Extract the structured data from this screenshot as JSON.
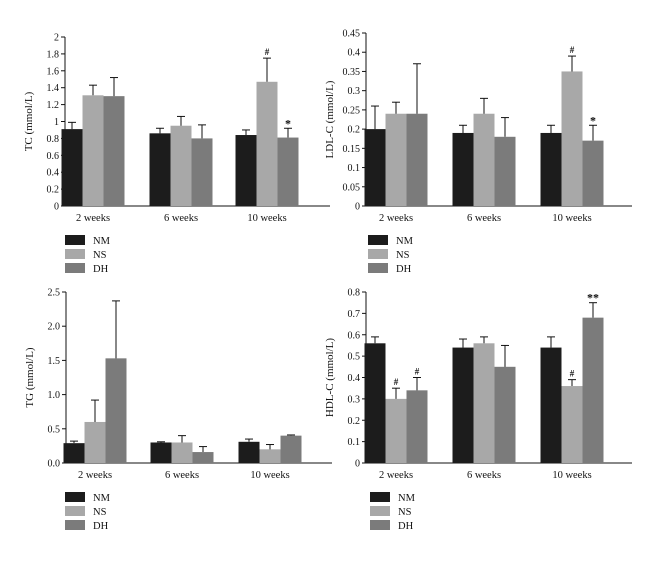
{
  "colors": {
    "NM": "#1c1c1c",
    "NS": "#a8a8a8",
    "DH": "#7b7b7b"
  },
  "legend": [
    {
      "key": "NM",
      "label": "NM"
    },
    {
      "key": "NS",
      "label": "NS"
    },
    {
      "key": "DH",
      "label": "DH"
    }
  ],
  "chart_data": [
    {
      "type": "bar",
      "ylabel": "TC (mmol/L)",
      "categories": [
        "2 weeks",
        "6 weeks",
        "10 weeks"
      ],
      "ylim": [
        0,
        2
      ],
      "yticks": [
        "0",
        "0.2",
        "0.4",
        "0.6",
        "0.8",
        "1",
        "1.2",
        "1.4",
        "1.6",
        "1.8",
        "2"
      ],
      "grid": false,
      "legend_position": "bottom-left",
      "series": [
        {
          "name": "NM",
          "values": [
            0.91,
            0.86,
            0.84
          ],
          "errors": [
            0.08,
            0.06,
            0.06
          ],
          "marks": [
            "",
            "",
            ""
          ]
        },
        {
          "name": "NS",
          "values": [
            1.31,
            0.95,
            1.47
          ],
          "errors": [
            0.12,
            0.11,
            0.28
          ],
          "marks": [
            "",
            "",
            "#"
          ]
        },
        {
          "name": "DH",
          "values": [
            1.3,
            0.8,
            0.81
          ],
          "errors": [
            0.22,
            0.16,
            0.11
          ],
          "marks": [
            "",
            "",
            "*"
          ]
        }
      ]
    },
    {
      "type": "bar",
      "ylabel": "LDL-C (mmol/L)",
      "categories": [
        "2 weeks",
        "6 weeks",
        "10 weeks"
      ],
      "ylim": [
        0,
        0.45
      ],
      "yticks": [
        "0",
        "0.05",
        "0.1",
        "0.15",
        "0.2",
        "0.25",
        "0.3",
        "0.35",
        "0.4",
        "0.45"
      ],
      "grid": false,
      "legend_position": "bottom-left",
      "series": [
        {
          "name": "NM",
          "values": [
            0.2,
            0.19,
            0.19
          ],
          "errors": [
            0.06,
            0.02,
            0.02
          ],
          "marks": [
            "",
            "",
            ""
          ]
        },
        {
          "name": "NS",
          "values": [
            0.24,
            0.24,
            0.35
          ],
          "errors": [
            0.03,
            0.04,
            0.04
          ],
          "marks": [
            "",
            "",
            "#"
          ]
        },
        {
          "name": "DH",
          "values": [
            0.24,
            0.18,
            0.17
          ],
          "errors": [
            0.13,
            0.05,
            0.04
          ],
          "marks": [
            "",
            "",
            "*"
          ]
        }
      ]
    },
    {
      "type": "bar",
      "ylabel": "TG (mmol/L)",
      "categories": [
        "2 weeks",
        "6 weeks",
        "10 weeks"
      ],
      "ylim": [
        0,
        2.5
      ],
      "yticks": [
        "0.0",
        "0.5",
        "1.0",
        "1.5",
        "2.0",
        "2.5"
      ],
      "grid": false,
      "legend_position": "bottom-left",
      "series": [
        {
          "name": "NM",
          "values": [
            0.29,
            0.3,
            0.31
          ],
          "errors": [
            0.03,
            0.01,
            0.04
          ],
          "marks": [
            "",
            "",
            ""
          ]
        },
        {
          "name": "NS",
          "values": [
            0.6,
            0.3,
            0.2
          ],
          "errors": [
            0.32,
            0.1,
            0.07
          ],
          "marks": [
            "",
            "",
            ""
          ]
        },
        {
          "name": "DH",
          "values": [
            1.53,
            0.16,
            0.4
          ],
          "errors": [
            0.84,
            0.08,
            0.01
          ],
          "marks": [
            "",
            "",
            ""
          ]
        }
      ]
    },
    {
      "type": "bar",
      "ylabel": "HDL-C (mmol/L)",
      "categories": [
        "2 weeks",
        "6 weeks",
        "10 weeks"
      ],
      "ylim": [
        0,
        0.8
      ],
      "yticks": [
        "0",
        "0.1",
        "0.2",
        "0.3",
        "0.4",
        "0.5",
        "0.6",
        "0.7",
        "0.8"
      ],
      "grid": false,
      "legend_position": "bottom-left",
      "series": [
        {
          "name": "NM",
          "values": [
            0.56,
            0.54,
            0.54
          ],
          "errors": [
            0.03,
            0.04,
            0.05
          ],
          "marks": [
            "",
            "",
            ""
          ]
        },
        {
          "name": "NS",
          "values": [
            0.3,
            0.56,
            0.36
          ],
          "errors": [
            0.05,
            0.03,
            0.03
          ],
          "marks": [
            "#",
            "",
            "#"
          ]
        },
        {
          "name": "DH",
          "values": [
            0.34,
            0.45,
            0.68
          ],
          "errors": [
            0.06,
            0.1,
            0.07
          ],
          "marks": [
            "#",
            "",
            "**"
          ]
        }
      ]
    }
  ]
}
